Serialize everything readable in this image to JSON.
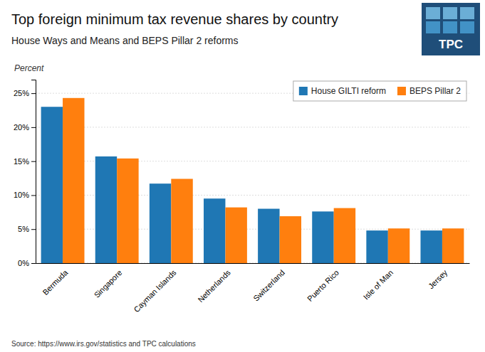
{
  "chart_data": {
    "type": "bar",
    "title": "Top foreign minimum tax revenue shares by country",
    "subtitle": "House Ways and Means and BEPS Pillar 2 reforms",
    "y_label": "Percent",
    "source": "Source: https://www.irs.gov/statistics and TPC calculations",
    "annotations": [
      "TPC"
    ],
    "categories": [
      "Bermuda",
      "Singapore",
      "Cayman Islands",
      "Netherlands",
      "Switzerland",
      "Puerto Rico",
      "Isle of Man",
      "Jersey"
    ],
    "series": [
      {
        "name": "House GILTI reform",
        "values": [
          23.0,
          15.7,
          11.7,
          9.5,
          8.0,
          7.6,
          4.8,
          4.8
        ]
      },
      {
        "name": "BEPS Pillar 2",
        "values": [
          24.3,
          15.4,
          12.4,
          8.2,
          6.9,
          8.1,
          5.1,
          5.1
        ]
      }
    ],
    "ylim": [
      0,
      27
    ],
    "yticks": [
      {
        "value": 0,
        "label": "0%"
      },
      {
        "value": 5,
        "label": "5%"
      },
      {
        "value": 10,
        "label": "10%"
      },
      {
        "value": 15,
        "label": "15%"
      },
      {
        "value": 20,
        "label": "20%"
      },
      {
        "value": 25,
        "label": "25%"
      }
    ],
    "grid": true,
    "legend": "top-right"
  }
}
